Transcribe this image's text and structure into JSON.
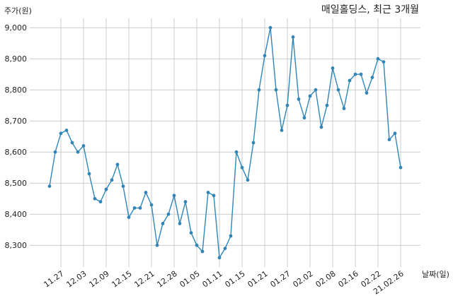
{
  "chart_data": {
    "type": "line",
    "title": "매일홀딩스, 최근 3개월",
    "ylabel": "주가(원)",
    "xlabel": "날짜(일)",
    "ylim": [
      8230,
      9030
    ],
    "yticks": [
      8300,
      8400,
      8500,
      8600,
      8700,
      8800,
      8900,
      9000
    ],
    "ytick_labels": [
      "8,300",
      "8,400",
      "8,500",
      "8,600",
      "8,700",
      "8,800",
      "8,900",
      "9,000"
    ],
    "xtick_indices": [
      2,
      6,
      10,
      14,
      18,
      22,
      26,
      30,
      34,
      38,
      42,
      46,
      50,
      54,
      58,
      62
    ],
    "xtick_labels": [
      "11.27",
      "12.03",
      "12.09",
      "12.15",
      "12.21",
      "12.28",
      "01.05",
      "01.11",
      "01.15",
      "01.21",
      "01.27",
      "02.02",
      "02.08",
      "02.16",
      "02.22",
      "21.02.26"
    ],
    "grid": true,
    "color": "#2e86b9",
    "series": [
      {
        "values": [
          8490,
          8600,
          8660,
          8670,
          8630,
          8600,
          8620,
          8530,
          8450,
          8440,
          8480,
          8510,
          8560,
          8490,
          8390,
          8420,
          8420,
          8470,
          8430,
          8300,
          8370,
          8400,
          8460,
          8370,
          8440,
          8340,
          8300,
          8280,
          8470,
          8460,
          8260,
          8290,
          8330,
          8600,
          8550,
          8510,
          8630,
          8800,
          8910,
          9000,
          8800,
          8670,
          8750,
          8970,
          8770,
          8710,
          8780,
          8800,
          8680,
          8750,
          8870,
          8800,
          8740,
          8830,
          8850,
          8850,
          8790,
          8840,
          8900,
          8890,
          8640,
          8660,
          8550
        ]
      }
    ]
  }
}
